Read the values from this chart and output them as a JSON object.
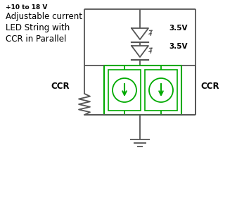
{
  "bg_color": "#ffffff",
  "line_color": "#555555",
  "green_color": "#00aa00",
  "text_color": "#000000",
  "title_text": "+10 to 18 V",
  "label_text": "Adjustable current\nLED String with\nCCR in Parallel",
  "voltage1": "3.5V",
  "voltage2": "3.5V",
  "ccr_left": "CCR",
  "ccr_right": "CCR",
  "fig_width": 3.37,
  "fig_height": 3.18,
  "dpi": 100
}
